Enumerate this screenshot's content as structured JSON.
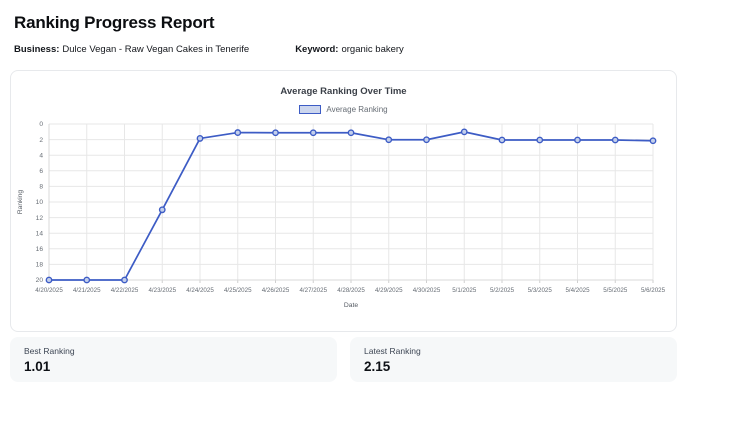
{
  "page": {
    "title": "Ranking Progress Report",
    "business_label": "Business:",
    "business_value": "Dulce Vegan - Raw Vegan Cakes in Tenerife",
    "keyword_label": "Keyword:",
    "keyword_value": "organic bakery"
  },
  "chart_data": {
    "type": "line",
    "title": "Average Ranking Over Time",
    "legend": "Average Ranking",
    "xlabel": "Date",
    "ylabel": "Ranking",
    "x": [
      "4/20/2025",
      "4/21/2025",
      "4/22/2025",
      "4/23/2025",
      "4/24/2025",
      "4/25/2025",
      "4/26/2025",
      "4/27/2025",
      "4/28/2025",
      "4/29/2025",
      "4/30/2025",
      "5/1/2025",
      "5/2/2025",
      "5/3/2025",
      "5/4/2025",
      "5/5/2025",
      "5/6/2025"
    ],
    "values": [
      20,
      20,
      20,
      11,
      1.85,
      1.1,
      1.12,
      1.12,
      1.12,
      2.02,
      2.02,
      1.01,
      2.05,
      2.05,
      2.05,
      2.05,
      2.15
    ],
    "ylim": [
      0,
      20
    ],
    "y_inverted": true,
    "y_tick_step": 2,
    "grid": true,
    "legend_position": "top",
    "line_color": "#3d5cc5",
    "point_fill": "#c3cfeb",
    "grid_color": "#e7e7e7",
    "tick_color": "#666c74"
  },
  "cards": [
    {
      "label": "Best Ranking",
      "value": "1.01"
    },
    {
      "label": "Latest Ranking",
      "value": "2.15"
    }
  ]
}
